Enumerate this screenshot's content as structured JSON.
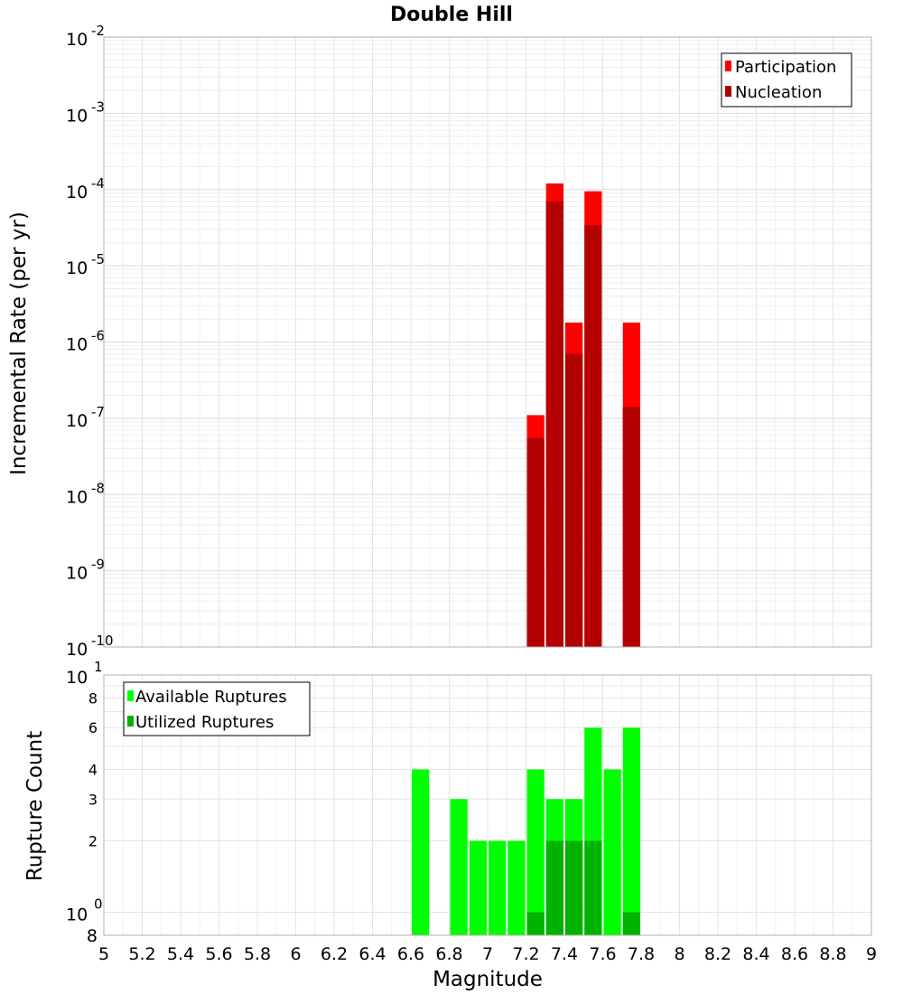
{
  "chart_data": [
    {
      "type": "bar",
      "title": "Double Hill",
      "ylabel": "Incremental Rate (per yr)",
      "xlim": [
        5,
        9
      ],
      "ylim": [
        1e-10,
        0.01
      ],
      "yscale": "log",
      "grid": true,
      "legend_position": "top-right",
      "bin_width": 0.1,
      "x": [
        7.25,
        7.35,
        7.45,
        7.55,
        7.75
      ],
      "series": [
        {
          "name": "Participation",
          "color": "#ff0000",
          "values": [
            1.1e-07,
            0.00012,
            1.8e-06,
            9.5e-05,
            1.8e-06
          ]
        },
        {
          "name": "Nucleation",
          "color": "#b30000",
          "values": [
            5.5e-08,
            7e-05,
            7e-07,
            3.4e-05,
            1.4e-07
          ]
        }
      ]
    },
    {
      "type": "bar",
      "xlabel": "Magnitude",
      "ylabel": "Rupture Count",
      "xlim": [
        5,
        9
      ],
      "ylim": [
        0.8,
        10
      ],
      "yscale": "log",
      "grid": true,
      "legend_position": "top-left",
      "bin_width": 0.1,
      "x": [
        6.65,
        6.85,
        6.95,
        7.05,
        7.15,
        7.25,
        7.35,
        7.45,
        7.55,
        7.65,
        7.75
      ],
      "series": [
        {
          "name": "Available Ruptures",
          "color": "#00ff00",
          "values": [
            4,
            3,
            2,
            2,
            2,
            4,
            3,
            3,
            6,
            4,
            6
          ]
        },
        {
          "name": "Utilized Ruptures",
          "color": "#00b300",
          "values": [
            0,
            0,
            0,
            0,
            0,
            1,
            2,
            2,
            2,
            0,
            1
          ]
        }
      ],
      "x_ticks": [
        "5",
        "5.2",
        "5.4",
        "5.6",
        "5.8",
        "6",
        "6.2",
        "6.4",
        "6.6",
        "6.8",
        "7",
        "7.2",
        "7.4",
        "7.6",
        "7.8",
        "8",
        "8.2",
        "8.4",
        "8.6",
        "8.8",
        "9"
      ],
      "y_ticks": [
        "2",
        "3",
        "4",
        "6",
        "8",
        "8"
      ]
    }
  ]
}
